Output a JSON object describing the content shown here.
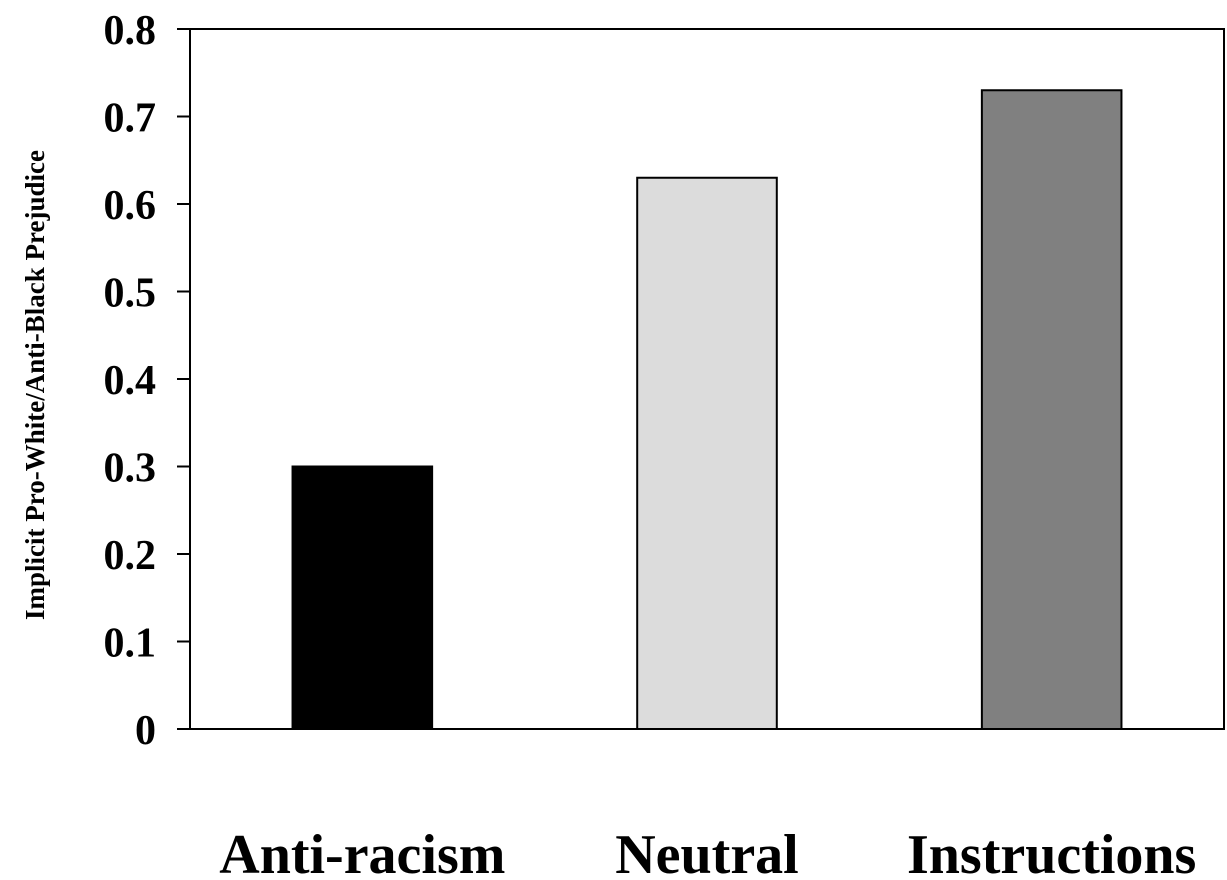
{
  "chart_data": {
    "type": "bar",
    "title": "",
    "xlabel": "",
    "ylabel": "Implicit Pro-White/Anti-Black Prejudice",
    "categories": [
      "Anti-racism",
      "Neutral",
      "Instructions"
    ],
    "values": [
      0.3,
      0.63,
      0.73
    ],
    "colors": [
      "#000000",
      "#dcdcdc",
      "#808080"
    ],
    "ylim": [
      0,
      0.8
    ],
    "yticks": [
      "0",
      "0.1",
      "0.2",
      "0.3",
      "0.4",
      "0.5",
      "0.6",
      "0.7",
      "0.8"
    ],
    "grid": false,
    "legend": "none"
  }
}
